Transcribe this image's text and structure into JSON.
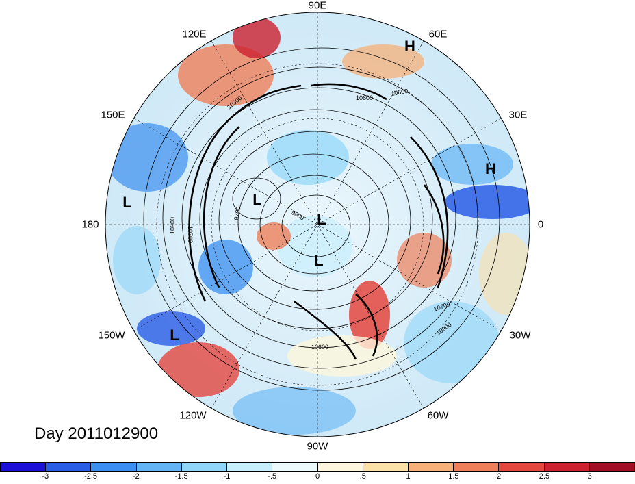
{
  "map": {
    "projection": "north-polar-stereographic",
    "field": "shaded anomaly with geopotential height contours",
    "longitude_labels": [
      {
        "id": "lon-90e",
        "text": "90E"
      },
      {
        "id": "lon-60e",
        "text": "60E"
      },
      {
        "id": "lon-30e",
        "text": "30E"
      },
      {
        "id": "lon-0",
        "text": "0"
      },
      {
        "id": "lon-30w",
        "text": "30W"
      },
      {
        "id": "lon-60w",
        "text": "60W"
      },
      {
        "id": "lon-90w",
        "text": "90W"
      },
      {
        "id": "lon-120w",
        "text": "120W"
      },
      {
        "id": "lon-150w",
        "text": "150W"
      },
      {
        "id": "lon-180",
        "text": "180"
      },
      {
        "id": "lon-150e",
        "text": "150E"
      },
      {
        "id": "lon-120e",
        "text": "120E"
      }
    ],
    "pressure_centers": [
      {
        "id": "h-60e",
        "text": "H"
      },
      {
        "id": "h-europe",
        "text": "H"
      },
      {
        "id": "l-pacific",
        "text": "L"
      },
      {
        "id": "l-siberia",
        "text": "L"
      },
      {
        "id": "l-pole",
        "text": "L"
      },
      {
        "id": "l-canada",
        "text": "L"
      },
      {
        "id": "l-gulf-alaska",
        "text": "L"
      }
    ],
    "contour_labels": [
      "10900",
      "10600",
      "10600",
      "10700",
      "10900",
      "10600",
      "10900",
      "10700",
      "9700",
      "9600"
    ]
  },
  "title": {
    "day_label": "Day 2011012900"
  },
  "colorbar": {
    "colors": [
      "#1c0fd6",
      "#2a5de6",
      "#3a8ff0",
      "#62b4f5",
      "#8fd6f8",
      "#c6eefc",
      "#ecf9fd",
      "#fdf6dc",
      "#fbe0a8",
      "#f6b07a",
      "#ee7f5a",
      "#e4473e",
      "#cc2130",
      "#a20e24"
    ],
    "tick_labels": [
      "-3",
      "-2.5",
      "-2",
      "-1.5",
      "-1",
      "-.5",
      "0",
      ".5",
      "1",
      "1.5",
      "2",
      "2.5",
      "3"
    ]
  }
}
